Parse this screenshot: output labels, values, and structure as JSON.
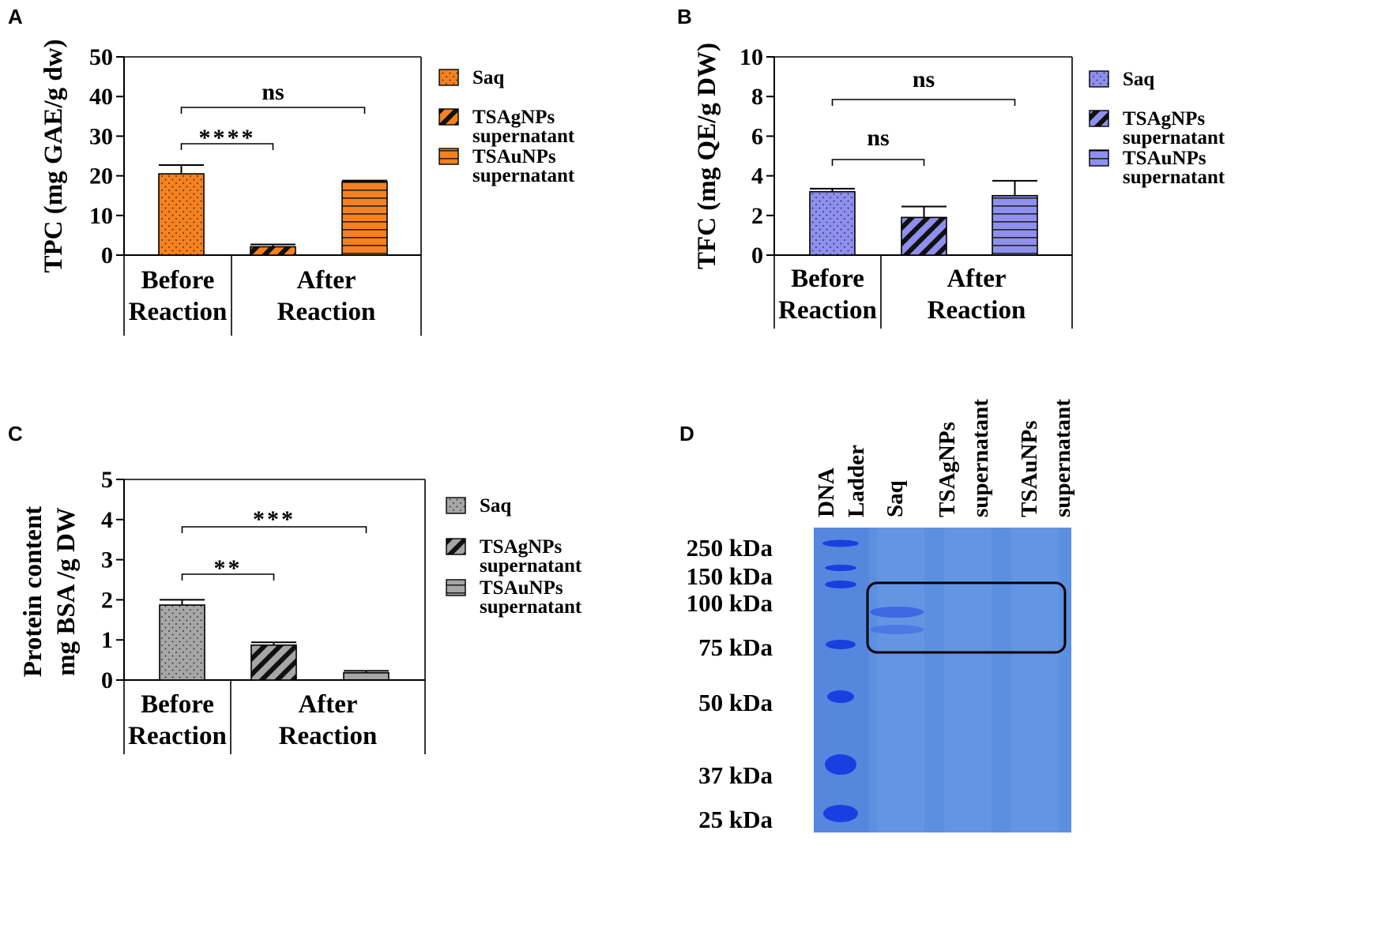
{
  "colors": {
    "panel_a": "#F5821F",
    "panel_b": "#8F8FEF",
    "panel_c": "#A6A6A6",
    "gel_background": "#5B8FE0",
    "gel_band": "#1840E0"
  },
  "chart_data": [
    {
      "panel": "A",
      "type": "bar",
      "ylabel": "TPC (mg GAE/g dw)",
      "ylim": [
        0,
        50
      ],
      "yticks": [
        "0",
        "10",
        "20",
        "30",
        "40",
        "50"
      ],
      "series": [
        {
          "name": "Saq",
          "pattern": "dots",
          "value": 20.5,
          "error": 2.2
        },
        {
          "name": "TSAgNPs supernatant",
          "pattern": "diagonal",
          "value": 2.1,
          "error": 0.6
        },
        {
          "name": "TSAuNPs supernatant",
          "pattern": "horizontal",
          "value": 18.5,
          "error": 0.3
        }
      ],
      "legend": [
        {
          "line1": "Saq",
          "line2": ""
        },
        {
          "line1": "TSAgNPs",
          "line2": "supernatant"
        },
        {
          "line1": "TSAuNPs",
          "line2": "supernatant"
        }
      ],
      "groups": [
        {
          "line1": "Before",
          "line2": "Reaction"
        },
        {
          "line1": "After",
          "line2": "Reaction"
        }
      ],
      "significance": [
        {
          "from": 0,
          "to": 1,
          "label": "****"
        },
        {
          "from": 0,
          "to": 2,
          "label": "ns"
        }
      ]
    },
    {
      "panel": "B",
      "type": "bar",
      "ylabel": "TFC (mg QE/g DW)",
      "ylim": [
        0,
        10
      ],
      "yticks": [
        "0",
        "2",
        "4",
        "6",
        "8",
        "10"
      ],
      "series": [
        {
          "name": "Saq",
          "pattern": "dots",
          "value": 3.2,
          "error": 0.15
        },
        {
          "name": "TSAgNPs supernatant",
          "pattern": "diagonal",
          "value": 1.9,
          "error": 0.55
        },
        {
          "name": "TSAuNPs supernatant",
          "pattern": "horizontal",
          "value": 3.0,
          "error": 0.75
        }
      ],
      "legend": [
        {
          "line1": "Saq",
          "line2": ""
        },
        {
          "line1": "TSAgNPs",
          "line2": "supernatant"
        },
        {
          "line1": "TSAuNPs",
          "line2": "supernatant"
        }
      ],
      "groups": [
        {
          "line1": "Before",
          "line2": "Reaction"
        },
        {
          "line1": "After",
          "line2": "Reaction"
        }
      ],
      "significance": [
        {
          "from": 0,
          "to": 1,
          "label": "ns"
        },
        {
          "from": 0,
          "to": 2,
          "label": "ns"
        }
      ]
    },
    {
      "panel": "C",
      "type": "bar",
      "ylabel_line1": "Protein content",
      "ylabel_line2": "mg BSA /g DW",
      "ylim": [
        0,
        5
      ],
      "yticks": [
        "0",
        "1",
        "2",
        "3",
        "4",
        "5"
      ],
      "series": [
        {
          "name": "Saq",
          "pattern": "dots",
          "value": 1.87,
          "error": 0.13
        },
        {
          "name": "TSAgNPs supernatant",
          "pattern": "diagonal",
          "value": 0.87,
          "error": 0.07
        },
        {
          "name": "TSAuNPs supernatant",
          "pattern": "horizontal",
          "value": 0.18,
          "error": 0.05
        }
      ],
      "legend": [
        {
          "line1": "Saq",
          "line2": ""
        },
        {
          "line1": "TSAgNPs",
          "line2": "supernatant"
        },
        {
          "line1": "TSAuNPs",
          "line2": "supernatant"
        }
      ],
      "groups": [
        {
          "line1": "Before",
          "line2": "Reaction"
        },
        {
          "line1": "After",
          "line2": "Reaction"
        }
      ],
      "significance": [
        {
          "from": 0,
          "to": 1,
          "label": "**"
        },
        {
          "from": 0,
          "to": 2,
          "label": "***"
        }
      ]
    }
  ],
  "gel": {
    "panel": "D",
    "lanes": [
      {
        "line1": "DNA",
        "line2": "Ladder"
      },
      {
        "line1": "Saq",
        "line2": ""
      },
      {
        "line1": "TSAgNPs",
        "line2": "supernatant"
      },
      {
        "line1": "TSAuNPs",
        "line2": "supernatant"
      }
    ],
    "markers": [
      "250 kDa",
      "150 kDa",
      "100 kDa",
      "75 kDa",
      "50 kDa",
      "37 kDa",
      "25 kDa"
    ]
  }
}
